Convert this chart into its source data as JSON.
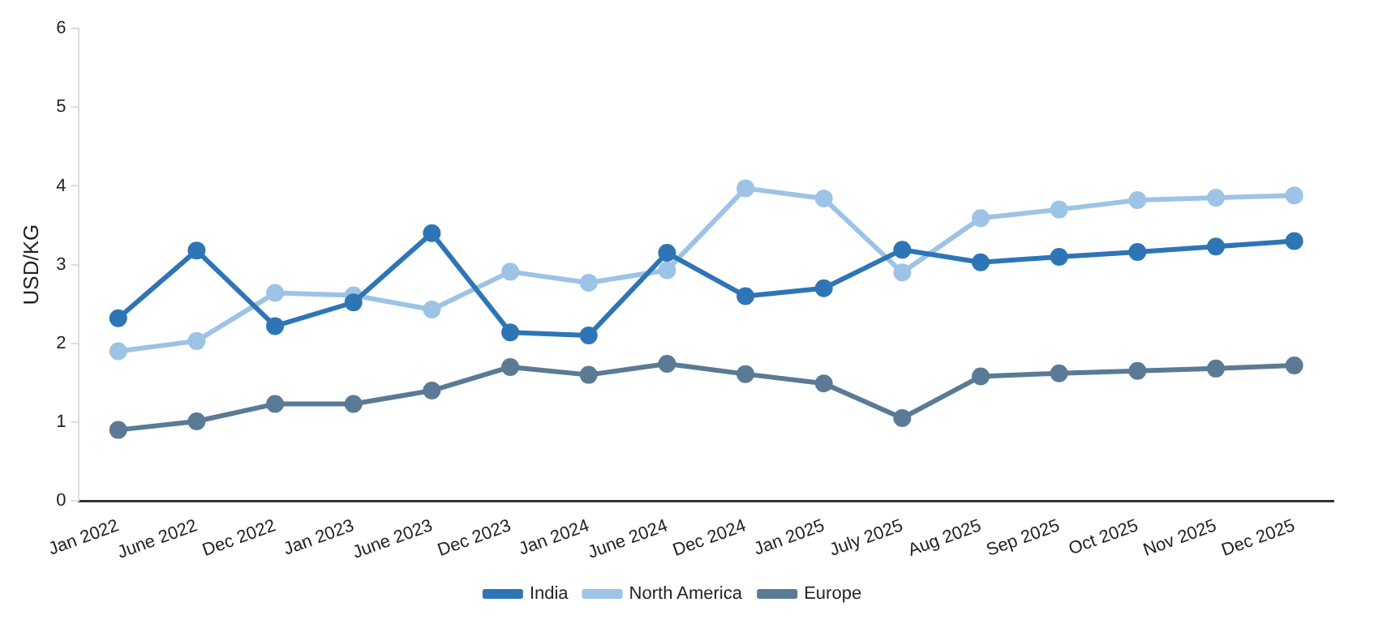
{
  "chart_data": {
    "type": "line",
    "ylabel": "USD/KG",
    "categories": [
      "Jan 2022",
      "June 2022",
      "Dec 2022",
      "Jan 2023",
      "June 2023",
      "Dec 2023",
      "Jan 2024",
      "June 2024",
      "Dec 2024",
      "Jan 2025",
      "July 2025",
      "Aug 2025",
      "Sep 2025",
      "Oct 2025",
      "Nov 2025",
      "Dec 2025"
    ],
    "series": [
      {
        "name": "India",
        "color": "#2e75b6",
        "values": [
          2.32,
          3.18,
          2.22,
          2.52,
          3.4,
          2.14,
          2.1,
          3.15,
          2.6,
          2.7,
          3.19,
          3.03,
          3.1,
          3.16,
          3.23,
          3.3
        ]
      },
      {
        "name": "North America",
        "color": "#9dc3e6",
        "values": [
          1.9,
          2.03,
          2.64,
          2.61,
          2.43,
          2.91,
          2.77,
          2.93,
          3.97,
          3.84,
          2.9,
          3.59,
          3.7,
          3.82,
          3.85,
          3.88
        ]
      },
      {
        "name": "Europe",
        "color": "#5a7a96",
        "values": [
          0.9,
          1.01,
          1.23,
          1.23,
          1.4,
          1.7,
          1.6,
          1.74,
          1.61,
          1.49,
          1.05,
          1.58,
          1.62,
          1.65,
          1.68,
          1.72
        ]
      }
    ],
    "ylim": [
      0,
      6
    ],
    "yticks": [
      0,
      1,
      2,
      3,
      4,
      5,
      6
    ],
    "grid": false,
    "legend": "bottom",
    "marker": "circle",
    "line_style": "solid"
  }
}
